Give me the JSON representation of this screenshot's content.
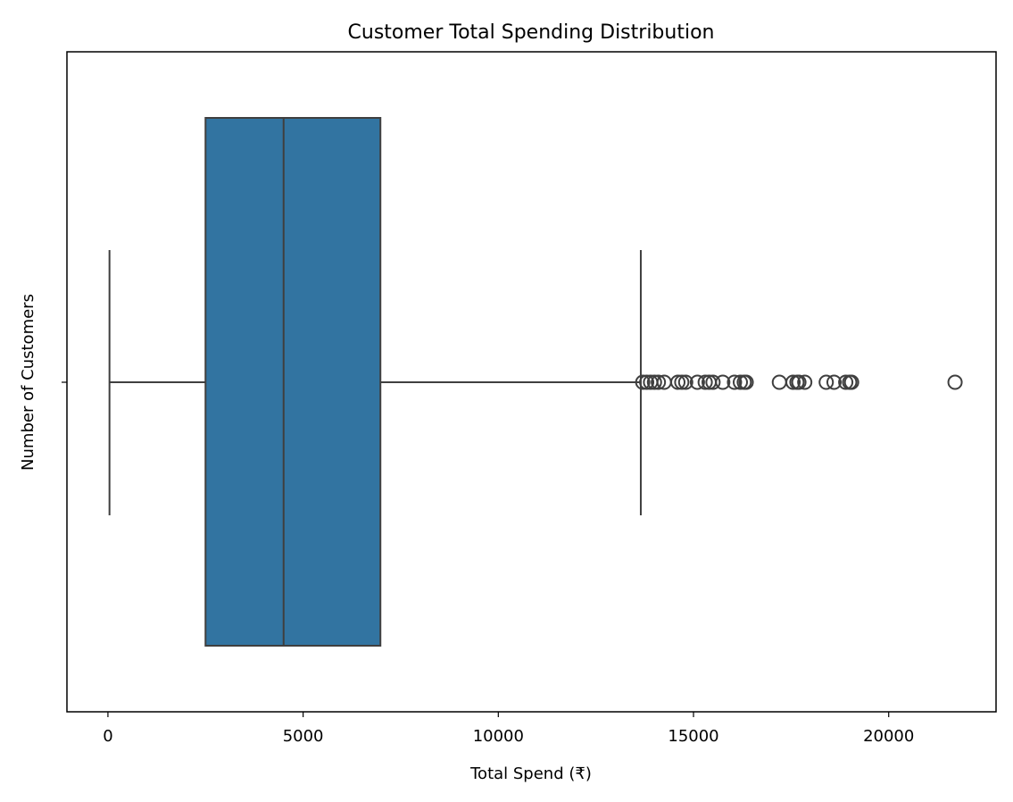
{
  "chart_data": {
    "type": "box",
    "orientation": "horizontal",
    "title": "Customer Total Spending Distribution",
    "xlabel": "Total Spend (₹)",
    "ylabel": "Number of Customers",
    "xlim": [
      -1050,
      22750
    ],
    "xticks": [
      0,
      5000,
      10000,
      15000,
      20000
    ],
    "grid": false,
    "color": "#3274a1",
    "edge_color": "#3f3f3f",
    "box": {
      "whisker_low": 40,
      "q1": 2500,
      "median": 4500,
      "q3": 6980,
      "whisker_high": 13650
    },
    "outliers": [
      13700,
      13800,
      13900,
      14000,
      14100,
      14250,
      14600,
      14700,
      14800,
      15100,
      15300,
      15400,
      15500,
      15750,
      16050,
      16200,
      16300,
      16350,
      17200,
      17550,
      17650,
      17700,
      17850,
      18400,
      18600,
      18900,
      19000,
      19050,
      21700
    ]
  }
}
